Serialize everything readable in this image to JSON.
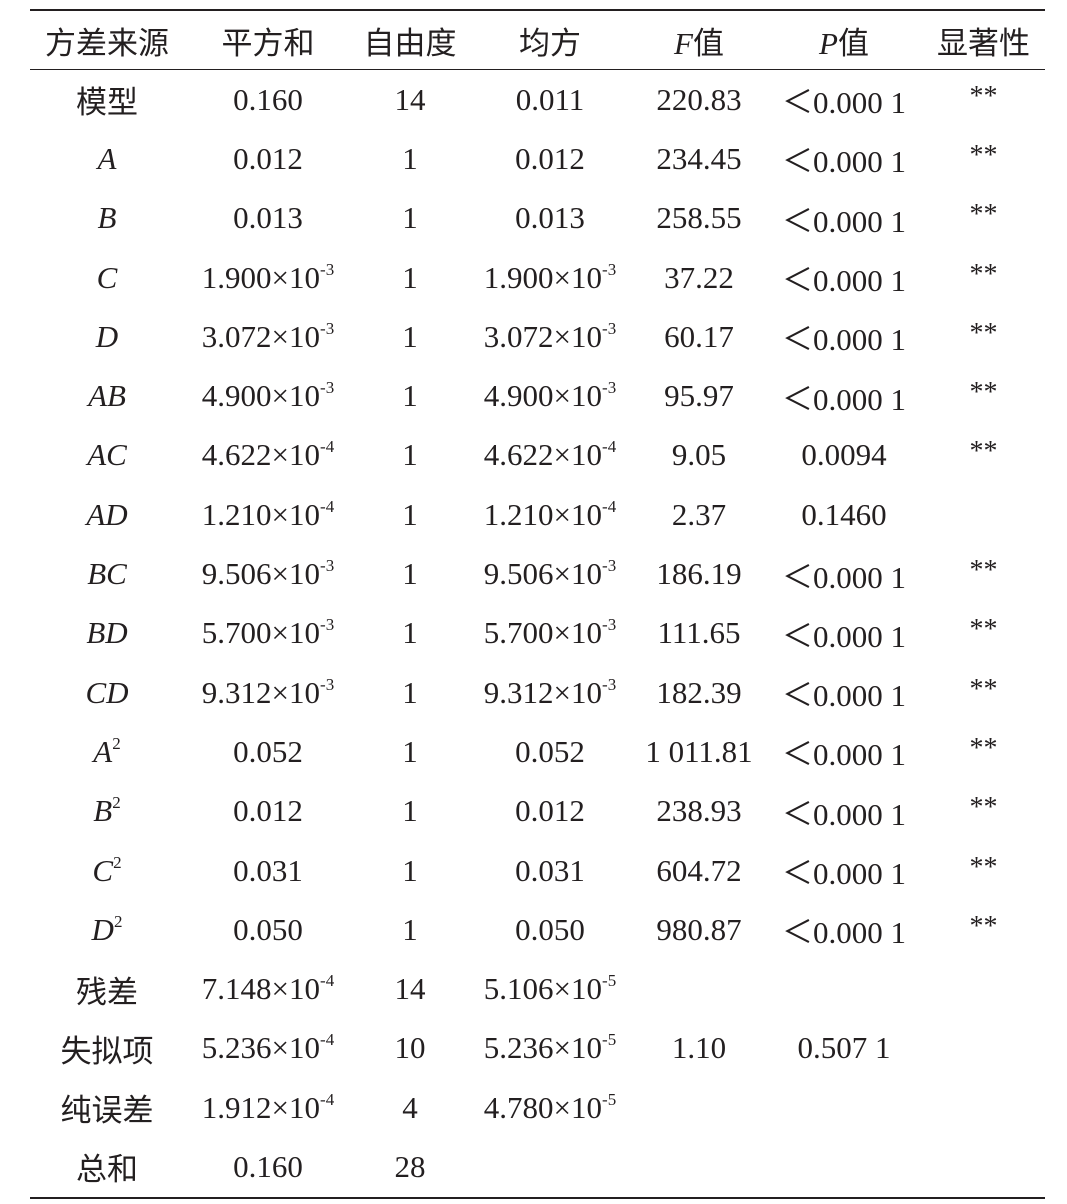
{
  "table": {
    "headers": [
      {
        "text": "方差来源"
      },
      {
        "text": "平方和"
      },
      {
        "text": "自由度"
      },
      {
        "text": "均方"
      },
      {
        "italic": "F",
        "text": "值"
      },
      {
        "italic": "P",
        "text": "值"
      },
      {
        "text": "显著性"
      }
    ],
    "rows": [
      [
        {
          "text": "模型"
        },
        {
          "text": "0.160"
        },
        {
          "text": "14"
        },
        {
          "text": "0.011"
        },
        {
          "text": "220.83"
        },
        {
          "text": "＜0.000 1"
        },
        {
          "text": "**"
        }
      ],
      [
        {
          "italic": "A"
        },
        {
          "text": "0.012"
        },
        {
          "text": "1"
        },
        {
          "text": "0.012"
        },
        {
          "text": "234.45"
        },
        {
          "text": "＜0.000 1"
        },
        {
          "text": "**"
        }
      ],
      [
        {
          "italic": "B"
        },
        {
          "text": "0.013"
        },
        {
          "text": "1"
        },
        {
          "text": "0.013"
        },
        {
          "text": "258.55"
        },
        {
          "text": "＜0.000 1"
        },
        {
          "text": "**"
        }
      ],
      [
        {
          "italic": "C"
        },
        {
          "text": "1.900×10",
          "sup": "-3"
        },
        {
          "text": "1"
        },
        {
          "text": "1.900×10",
          "sup": "-3"
        },
        {
          "text": "37.22"
        },
        {
          "text": "＜0.000 1"
        },
        {
          "text": "**"
        }
      ],
      [
        {
          "italic": "D"
        },
        {
          "text": "3.072×10",
          "sup": "-3"
        },
        {
          "text": "1"
        },
        {
          "text": "3.072×10",
          "sup": "-3"
        },
        {
          "text": "60.17"
        },
        {
          "text": "＜0.000 1"
        },
        {
          "text": "**"
        }
      ],
      [
        {
          "italic": "AB"
        },
        {
          "text": "4.900×10",
          "sup": "-3"
        },
        {
          "text": "1"
        },
        {
          "text": "4.900×10",
          "sup": "-3"
        },
        {
          "text": "95.97"
        },
        {
          "text": "＜0.000 1"
        },
        {
          "text": "**"
        }
      ],
      [
        {
          "italic": "AC"
        },
        {
          "text": "4.622×10",
          "sup": "-4"
        },
        {
          "text": "1"
        },
        {
          "text": "4.622×10",
          "sup": "-4"
        },
        {
          "text": "9.05"
        },
        {
          "text": "0.0094"
        },
        {
          "text": "**"
        }
      ],
      [
        {
          "italic": "AD"
        },
        {
          "text": "1.210×10",
          "sup": "-4"
        },
        {
          "text": "1"
        },
        {
          "text": "1.210×10",
          "sup": "-4"
        },
        {
          "text": "2.37"
        },
        {
          "text": "0.1460"
        },
        {
          "text": ""
        }
      ],
      [
        {
          "italic": "BC"
        },
        {
          "text": "9.506×10",
          "sup": "-3"
        },
        {
          "text": "1"
        },
        {
          "text": "9.506×10",
          "sup": "-3"
        },
        {
          "text": "186.19"
        },
        {
          "text": "＜0.000 1"
        },
        {
          "text": "**"
        }
      ],
      [
        {
          "italic": "BD"
        },
        {
          "text": "5.700×10",
          "sup": "-3"
        },
        {
          "text": "1"
        },
        {
          "text": "5.700×10",
          "sup": "-3"
        },
        {
          "text": "111.65"
        },
        {
          "text": "＜0.000 1"
        },
        {
          "text": "**"
        }
      ],
      [
        {
          "italic": "CD"
        },
        {
          "text": "9.312×10",
          "sup": "-3"
        },
        {
          "text": "1"
        },
        {
          "text": "9.312×10",
          "sup": "-3"
        },
        {
          "text": "182.39"
        },
        {
          "text": "＜0.000 1"
        },
        {
          "text": "**"
        }
      ],
      [
        {
          "italic": "A",
          "sup": "2"
        },
        {
          "text": "0.052"
        },
        {
          "text": "1"
        },
        {
          "text": "0.052"
        },
        {
          "text": "1 011.81"
        },
        {
          "text": "＜0.000 1"
        },
        {
          "text": "**"
        }
      ],
      [
        {
          "italic": "B",
          "sup": "2"
        },
        {
          "text": "0.012"
        },
        {
          "text": "1"
        },
        {
          "text": "0.012"
        },
        {
          "text": "238.93"
        },
        {
          "text": "＜0.000 1"
        },
        {
          "text": "**"
        }
      ],
      [
        {
          "italic": "C",
          "sup": "2"
        },
        {
          "text": "0.031"
        },
        {
          "text": "1"
        },
        {
          "text": "0.031"
        },
        {
          "text": "604.72"
        },
        {
          "text": "＜0.000 1"
        },
        {
          "text": "**"
        }
      ],
      [
        {
          "italic": "D",
          "sup": "2"
        },
        {
          "text": "0.050"
        },
        {
          "text": "1"
        },
        {
          "text": "0.050"
        },
        {
          "text": "980.87"
        },
        {
          "text": "＜0.000 1"
        },
        {
          "text": "**"
        }
      ],
      [
        {
          "text": "残差"
        },
        {
          "text": "7.148×10",
          "sup": "-4"
        },
        {
          "text": "14"
        },
        {
          "text": "5.106×10",
          "sup": "-5"
        },
        {
          "text": ""
        },
        {
          "text": ""
        },
        {
          "text": ""
        }
      ],
      [
        {
          "text": "失拟项"
        },
        {
          "text": "5.236×10",
          "sup": "-4"
        },
        {
          "text": "10"
        },
        {
          "text": "5.236×10",
          "sup": "-5"
        },
        {
          "text": "1.10"
        },
        {
          "text": "0.507 1"
        },
        {
          "text": ""
        }
      ],
      [
        {
          "text": "纯误差"
        },
        {
          "text": "1.912×10",
          "sup": "-4"
        },
        {
          "text": "4"
        },
        {
          "text": "4.780×10",
          "sup": "-5"
        },
        {
          "text": ""
        },
        {
          "text": ""
        },
        {
          "text": ""
        }
      ],
      [
        {
          "text": "总和"
        },
        {
          "text": "0.160"
        },
        {
          "text": "28"
        },
        {
          "text": ""
        },
        {
          "text": ""
        },
        {
          "text": ""
        },
        {
          "text": ""
        }
      ]
    ]
  }
}
